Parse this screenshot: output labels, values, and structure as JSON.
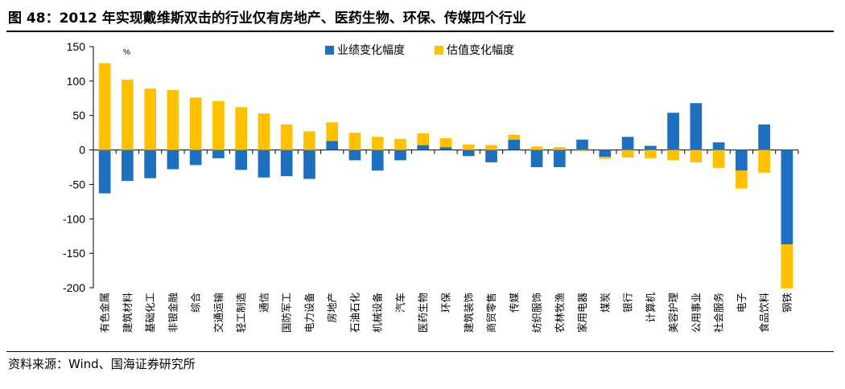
{
  "title": "图 48：2012 年实现戴维斯双击的行业仅有房地产、医药生物、环保、传媒四个行业",
  "source": "资料来源：Wind、国海证券研究所",
  "colors": {
    "earnings": "#1f6fbf",
    "valuation": "#ffc000"
  },
  "chart_data": {
    "type": "bar",
    "stacked": true,
    "unit_label": "%",
    "ylim": [
      -200,
      150
    ],
    "yticks": [
      150,
      100,
      50,
      0,
      -50,
      -100,
      -150,
      -200
    ],
    "legend_position": "top",
    "categories": [
      "有色金属",
      "建筑材料",
      "基础化工",
      "非银金融",
      "综合",
      "交通运输",
      "轻工制造",
      "通信",
      "国防军工",
      "电力设备",
      "房地产",
      "石油石化",
      "机械设备",
      "汽车",
      "医药生物",
      "环保",
      "建筑装饰",
      "商贸零售",
      "传媒",
      "纺织服饰",
      "农林牧渔",
      "家用电器",
      "煤炭",
      "银行",
      "计算机",
      "美容护理",
      "公用事业",
      "社会服务",
      "电子",
      "食品饮料",
      "钢铁"
    ],
    "series": [
      {
        "name": "业绩变化幅度",
        "values": [
          -63,
          -45,
          -41,
          -28,
          -22,
          -12,
          -29,
          -40,
          -38,
          -42,
          13,
          -15,
          -30,
          -15,
          7,
          4,
          -9,
          -18,
          15,
          -25,
          -25,
          15,
          -10,
          19,
          6,
          54,
          68,
          11,
          -30,
          37,
          -137
        ]
      },
      {
        "name": "估值变化幅度",
        "values": [
          126,
          102,
          89,
          87,
          76,
          71,
          62,
          53,
          37,
          27,
          27,
          25,
          19,
          16,
          17,
          13,
          8,
          7,
          7,
          5,
          4,
          -2,
          -3,
          -11,
          -12,
          -15,
          -18,
          -26,
          -26,
          -33,
          -64
        ]
      }
    ]
  }
}
